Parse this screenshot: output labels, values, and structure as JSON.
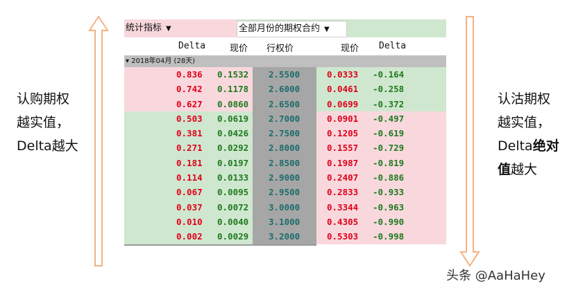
{
  "toolbar": {
    "stat_label": "统计指标",
    "contract_label": "全部月份的期权合约"
  },
  "columns": {
    "call_delta": "Delta",
    "call_price": "现价",
    "strike": "行权价",
    "put_price": "现价",
    "put_delta": "Delta"
  },
  "group": {
    "label": "2018年04月 (28天)"
  },
  "rows": [
    {
      "call_delta": "0.836",
      "call_price": "0.1532",
      "strike": "2.5500",
      "put_price": "0.0333",
      "put_delta": "-0.164"
    },
    {
      "call_delta": "0.742",
      "call_price": "0.1178",
      "strike": "2.6000",
      "put_price": "0.0461",
      "put_delta": "-0.258"
    },
    {
      "call_delta": "0.627",
      "call_price": "0.0860",
      "strike": "2.6500",
      "put_price": "0.0699",
      "put_delta": "-0.372"
    },
    {
      "call_delta": "0.503",
      "call_price": "0.0619",
      "strike": "2.7000",
      "put_price": "0.0901",
      "put_delta": "-0.497"
    },
    {
      "call_delta": "0.381",
      "call_price": "0.0426",
      "strike": "2.7500",
      "put_price": "0.1205",
      "put_delta": "-0.619"
    },
    {
      "call_delta": "0.271",
      "call_price": "0.0292",
      "strike": "2.8000",
      "put_price": "0.1557",
      "put_delta": "-0.729"
    },
    {
      "call_delta": "0.181",
      "call_price": "0.0197",
      "strike": "2.8500",
      "put_price": "0.1987",
      "put_delta": "-0.819"
    },
    {
      "call_delta": "0.114",
      "call_price": "0.0133",
      "strike": "2.9000",
      "put_price": "0.2407",
      "put_delta": "-0.886"
    },
    {
      "call_delta": "0.067",
      "call_price": "0.0095",
      "strike": "2.9500",
      "put_price": "0.2833",
      "put_delta": "-0.933"
    },
    {
      "call_delta": "0.037",
      "call_price": "0.0072",
      "strike": "3.0000",
      "put_price": "0.3344",
      "put_delta": "-0.963"
    },
    {
      "call_delta": "0.010",
      "call_price": "0.0040",
      "strike": "3.1000",
      "put_price": "0.4305",
      "put_delta": "-0.990"
    },
    {
      "call_delta": "0.002",
      "call_price": "0.0029",
      "strike": "3.2000",
      "put_price": "0.5303",
      "put_delta": "-0.998"
    }
  ],
  "annotations": {
    "left_line1": "认购期权",
    "left_line2": "越实值，",
    "left_line3": "Delta越大",
    "right_line1": "认沽期权",
    "right_line2": "越实值，",
    "right_line3_a": "Delta",
    "right_line3_b": "绝对",
    "right_line4_a": "值",
    "right_line4_b": "越大"
  },
  "watermark": "头条 @AaHaHey",
  "colors": {
    "in_the_money_bg": "#f8d8dd",
    "out_of_money_bg": "#cfe7cf",
    "strike_bg": "#a6a6a6",
    "red_text": "#e0001a",
    "green_text": "#1e7a1e",
    "strike_text": "#1d6b6b",
    "arrow": "#f4b183"
  }
}
